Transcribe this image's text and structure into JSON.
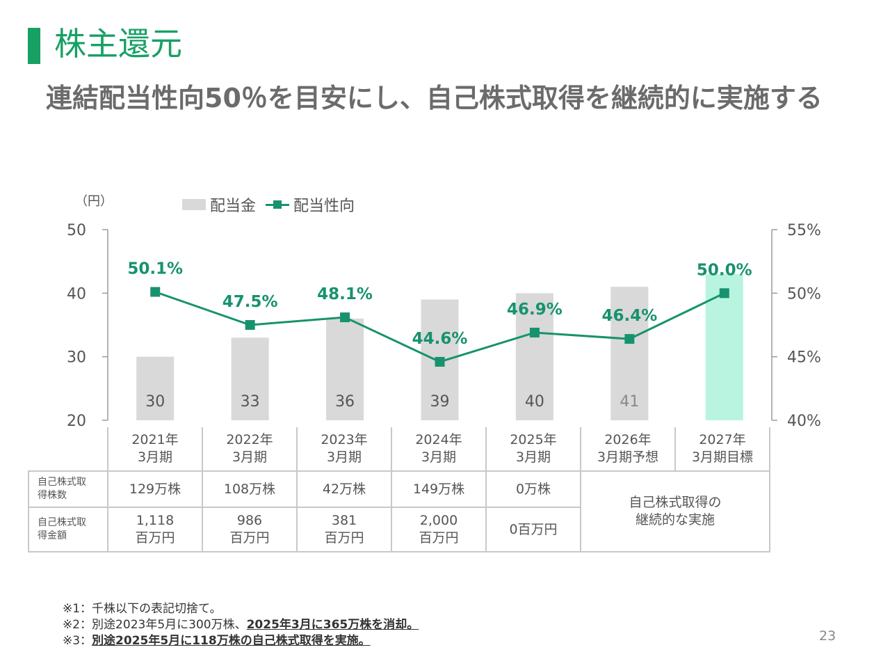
{
  "page": {
    "section_title": "株主還元",
    "headline": "連結配当性向50％を目安にし、自己株式取得を継続的に実施する",
    "unit_label": "（円）",
    "page_number": "23",
    "accent_color": "#17a064"
  },
  "legend": {
    "bar": "配当金",
    "line": "配当性向"
  },
  "chart_data": {
    "type": "bar+line",
    "categories": [
      "2021年\n3月期",
      "2022年\n3月期",
      "2023年\n3月期",
      "2024年\n3月期",
      "2025年\n3月期",
      "2026年\n3月期予想",
      "2027年\n3月期目標"
    ],
    "series": [
      {
        "name": "配当金",
        "type": "bar",
        "values": [
          30,
          33,
          36,
          39,
          40,
          41,
          43
        ],
        "labels": [
          "30",
          "33",
          "36",
          "39",
          "40",
          "41",
          ""
        ],
        "colors": [
          "#d9d9d9",
          "#d9d9d9",
          "#d9d9d9",
          "#d9d9d9",
          "#d9d9d9",
          "#d9d9d9",
          "#b8f4e0"
        ]
      },
      {
        "name": "配当性向",
        "type": "line",
        "axis": "right",
        "values": [
          50.1,
          47.5,
          48.1,
          44.6,
          46.9,
          46.4,
          50.0
        ],
        "labels": [
          "50.1%",
          "47.5%",
          "48.1%",
          "44.6%",
          "46.9%",
          "46.4%",
          "50.0%"
        ],
        "color": "#17926e"
      }
    ],
    "y_left": {
      "range": [
        20,
        50
      ],
      "ticks": [
        20,
        30,
        40,
        50
      ]
    },
    "y_right": {
      "range": [
        40,
        55
      ],
      "ticks": [
        40,
        45,
        50,
        55
      ],
      "tick_labels": [
        "40%",
        "45%",
        "50%",
        "55%"
      ]
    },
    "legend_position": "top-left"
  },
  "table": {
    "row1": {
      "label": "自己株式取\n得株数",
      "values": [
        "129万株",
        "108万株",
        "42万株",
        "149万株",
        "0万株"
      ]
    },
    "row2": {
      "label": "自己株式取\n得金額",
      "values": [
        "1,118\n百万円",
        "986\n百万円",
        "381\n百万円",
        "2,000\n百万円",
        "0百万円"
      ]
    },
    "merged_note": "自己株式取得の\n継続的な実施"
  },
  "notes": {
    "n1": "※1：千株以下の表記切捨て。",
    "n2_plain": "※2：別途2023年5月に300万株、",
    "n2_underlined": "2025年3月に365万株を消却。",
    "n3_plain": "※3：",
    "n3_underlined": "別途2025年5月に118万株の自己株式取得を実施。"
  }
}
